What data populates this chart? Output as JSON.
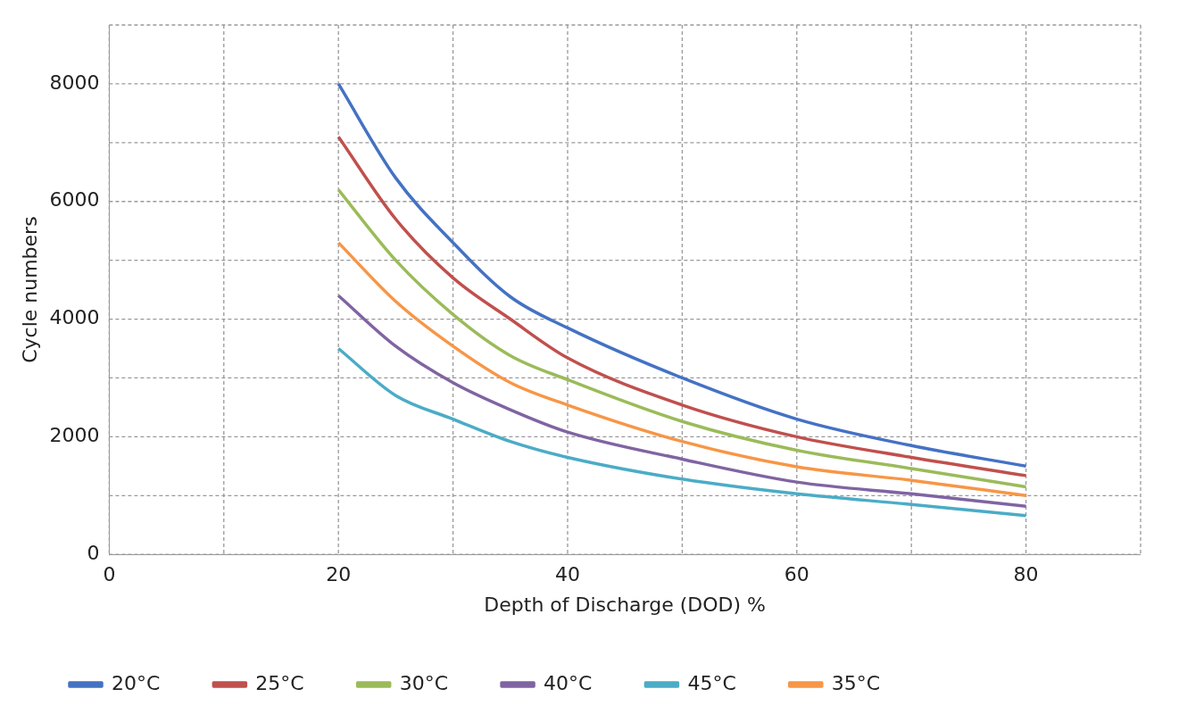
{
  "chart_data": {
    "type": "line",
    "xlabel": "Depth of Discharge (DOD) %",
    "ylabel": "Cycle numbers",
    "x": [
      20,
      25,
      30,
      35,
      40,
      50,
      60,
      70,
      80
    ],
    "series": [
      {
        "name": "20°C",
        "color": "#4472c4",
        "values": [
          8000,
          6400,
          5300,
          4380,
          3850,
          3000,
          2300,
          1850,
          1500
        ]
      },
      {
        "name": "25°C",
        "color": "#c0504d",
        "values": [
          7100,
          5700,
          4700,
          4000,
          3340,
          2540,
          2000,
          1650,
          1340
        ]
      },
      {
        "name": "30°C",
        "color": "#9bbb59",
        "values": [
          6200,
          5000,
          4080,
          3380,
          2970,
          2260,
          1770,
          1460,
          1150
        ]
      },
      {
        "name": "40°C",
        "color": "#8064a2",
        "values": [
          4400,
          3540,
          2920,
          2460,
          2080,
          1620,
          1230,
          1030,
          820
        ]
      },
      {
        "name": "45°C",
        "color": "#4bacc6",
        "values": [
          3500,
          2700,
          2300,
          1920,
          1650,
          1280,
          1030,
          850,
          660
        ]
      },
      {
        "name": "35°C",
        "color": "#f79646",
        "values": [
          5300,
          4300,
          3540,
          2920,
          2540,
          1920,
          1490,
          1260,
          1000
        ]
      }
    ],
    "xlim": [
      0,
      90
    ],
    "xticks": [
      0,
      {
        "value": 10,
        "label": null
      },
      20,
      {
        "value": 30,
        "label": null
      },
      40,
      {
        "value": 50,
        "label": null
      },
      60,
      {
        "value": 70,
        "label": null
      },
      80,
      {
        "value": 90,
        "label": null
      }
    ],
    "ylim": [
      0,
      9000
    ],
    "yticks": [
      0,
      {
        "value": 1000,
        "label": null
      },
      2000,
      {
        "value": 3000,
        "label": null
      },
      4000,
      {
        "value": 5000,
        "label": null
      },
      6000,
      {
        "value": 7000,
        "label": null
      },
      8000,
      {
        "value": 9000,
        "label": null
      }
    ],
    "grid": true,
    "legend": "bottom",
    "marker": "none",
    "line_style": "solid"
  }
}
